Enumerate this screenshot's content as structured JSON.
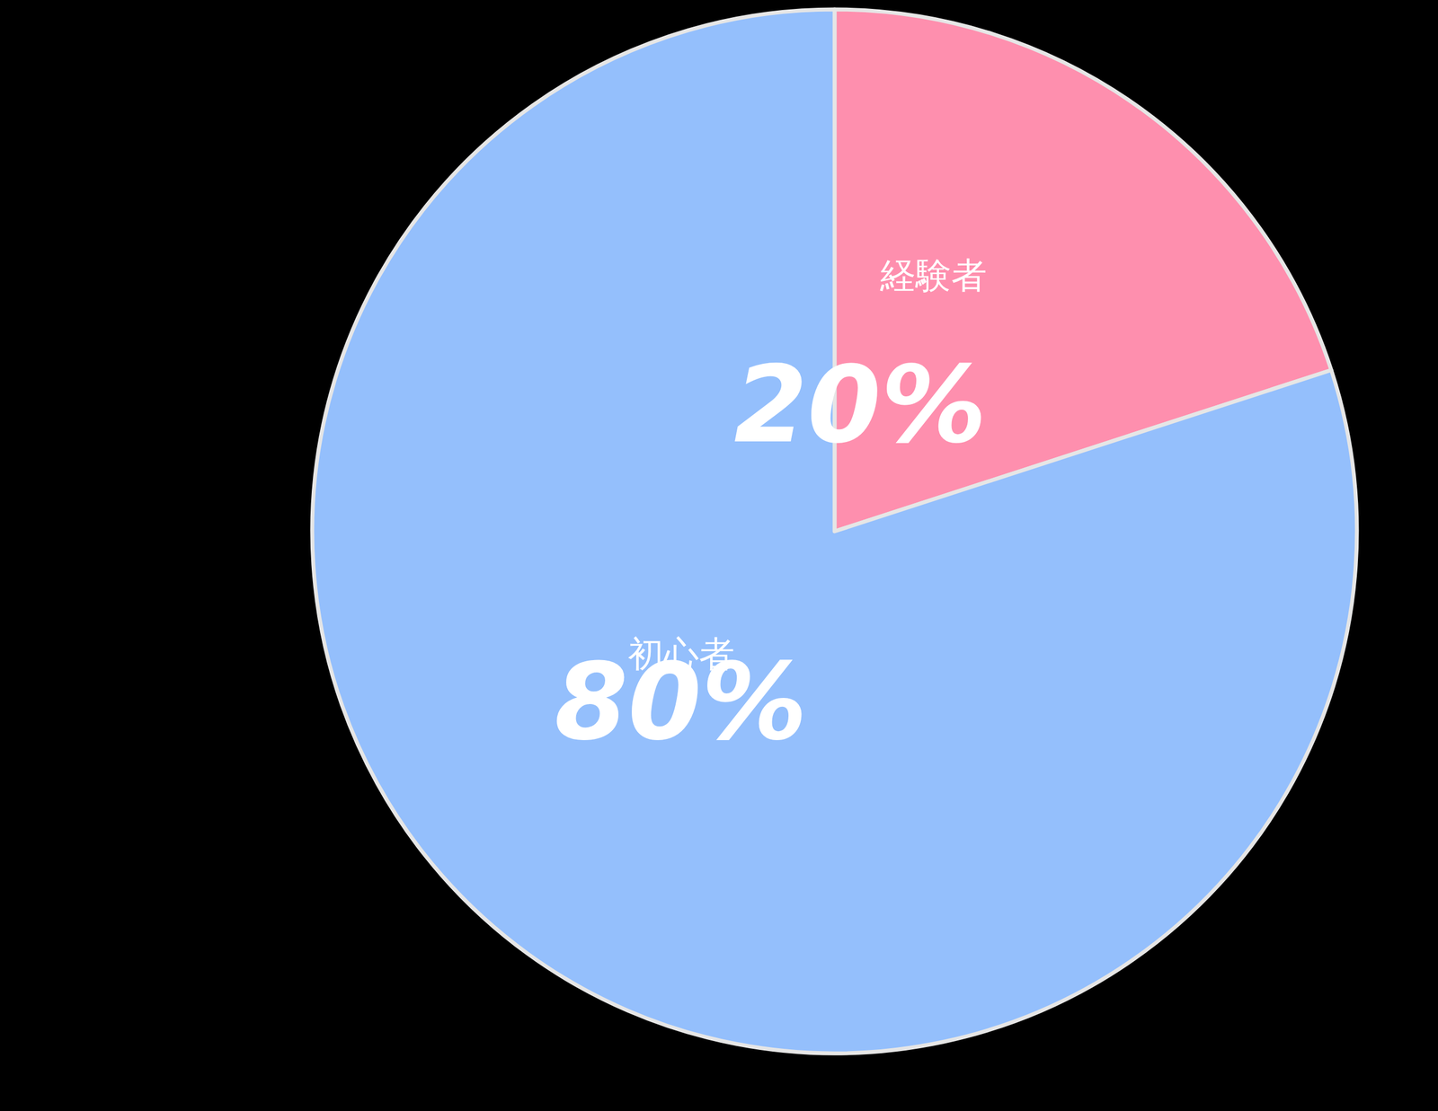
{
  "chart_data": {
    "type": "pie",
    "categories": [
      "経験者",
      "初心者"
    ],
    "values": [
      20,
      80
    ],
    "value_labels": [
      "20%",
      "80%"
    ],
    "colors": [
      "#fe8fae",
      "#94bffc"
    ],
    "data_labels": true
  }
}
